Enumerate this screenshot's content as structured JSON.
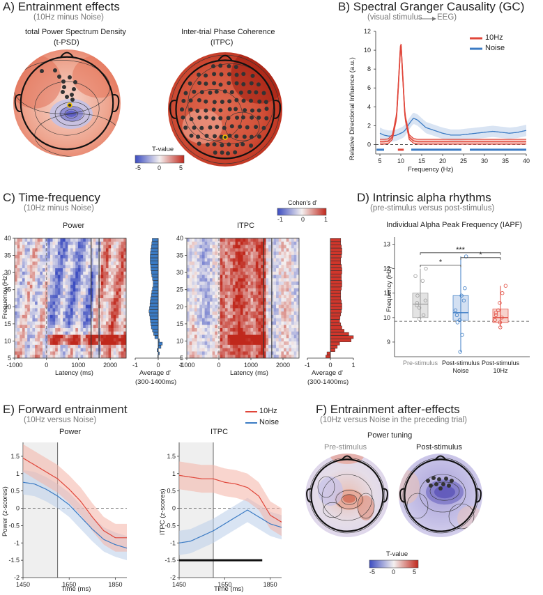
{
  "panels": {
    "A": {
      "title": "A) Entrainment effects",
      "subtitle": "(10Hz minus Noise)",
      "map1_title": "total Power Spectrum Density",
      "map1_sub": "(t-PSD)",
      "map2_title": "Inter-trial Phase Coherence",
      "map2_sub": "(ITPC)",
      "cbar_title": "T-value",
      "cbar_ticks": [
        "-5",
        "0",
        "5"
      ]
    },
    "B": {
      "title": "B) Spectral Granger Causality (GC)",
      "subtitle": "(visual stimulus",
      "subtitle_end": "EEG)",
      "ylabel": "Relative Directional Influence (a.u.)",
      "xlabel": "Frequency (Hz)"
    },
    "C": {
      "title": "C) Time-frequency",
      "subtitle": "(10Hz minus Noise)",
      "power_title": "Power",
      "itpc_title": "ITPC",
      "ylabel": "Frequency (Hz)",
      "xlabel": "Latency (ms)",
      "bar_xlabel": "Average d'",
      "bar_xsub": "(300-1400ms)",
      "cbar_title": "Cohen's d'",
      "cbar_ticks": [
        "-1",
        "0",
        "1"
      ]
    },
    "D": {
      "title": "D) Intrinsic alpha rhythms",
      "subtitle": "(pre-stimulus versus post-stimulus)",
      "plot_title": "Individual Alpha Peak Frequency (IAPF)",
      "ylabel": "Frequency (Hz)",
      "cats": [
        "Pre-stimulus",
        "Post-stimulus\nNoise",
        "Post-stimulus\n10Hz"
      ],
      "sig": [
        "*",
        "***",
        "*"
      ]
    },
    "E": {
      "title": "E) Forward entrainment",
      "subtitle": "(10Hz versus Noise)",
      "power_title": "Power",
      "itpc_title": "ITPC",
      "ylabel_power": "Power (z-scores)",
      "ylabel_itpc": "ITPC (z-scores)",
      "xlabel": "Time (ms)"
    },
    "F": {
      "title": "F) Entrainment after-effects",
      "subtitle": "(10Hz versus Noise in the preceding trial)",
      "tuning_title": "Power tuning",
      "pre_title": "Pre-stimulus",
      "post_title": "Post-stimulus",
      "cbar_title": "T-value",
      "cbar_ticks": [
        "-5",
        "0",
        "5"
      ]
    }
  },
  "legend": {
    "s1": "10Hz",
    "s2": "Noise"
  },
  "colors": {
    "red": "#e0463a",
    "blue": "#3b7bc4",
    "redfill": "#f4b3a6",
    "bluefill": "#b9cdea"
  },
  "chart_data": [
    {
      "type": "line",
      "title": "Spectral Granger Causality (GC)",
      "xlabel": "Frequency (Hz)",
      "ylabel": "Relative Directional Influence (a.u.)",
      "x": [
        5,
        6,
        7,
        8,
        9,
        9.5,
        10,
        10.5,
        11,
        12,
        13,
        14,
        15,
        16,
        18,
        20,
        22,
        24,
        26,
        28,
        30,
        32,
        34,
        36,
        38,
        40
      ],
      "series": [
        {
          "name": "10Hz",
          "values": [
            0.3,
            0.3,
            0.35,
            0.8,
            3.0,
            7.0,
            11.0,
            7.0,
            3.0,
            0.8,
            0.4,
            0.3,
            0.3,
            0.3,
            0.3,
            0.3,
            0.3,
            0.3,
            0.3,
            0.3,
            0.3,
            0.3,
            0.3,
            0.3,
            0.3,
            0.3
          ]
        },
        {
          "name": "Noise",
          "values": [
            1.2,
            1.0,
            0.9,
            0.9,
            1.0,
            1.1,
            1.2,
            1.3,
            1.5,
            2.2,
            2.8,
            2.6,
            2.2,
            1.8,
            1.5,
            1.2,
            1.0,
            1.0,
            1.1,
            1.2,
            1.3,
            1.4,
            1.3,
            1.2,
            1.3,
            1.5
          ]
        }
      ],
      "xticks": [
        5,
        10,
        15,
        20,
        25,
        30,
        35,
        40
      ],
      "yticks": [
        0,
        2,
        4,
        6,
        8,
        10,
        12
      ],
      "ylim": [
        -1,
        12
      ],
      "xlim": [
        4,
        40
      ]
    },
    {
      "type": "heatmap",
      "title": "Power",
      "xlabel": "Latency (ms)",
      "ylabel": "Frequency (Hz)",
      "xticks": [
        -1000,
        0,
        1000,
        2000
      ],
      "yticks": [
        5,
        10,
        15,
        20,
        25,
        30,
        35,
        40
      ]
    },
    {
      "type": "heatmap",
      "title": "ITPC",
      "xlabel": "Latency (ms)",
      "ylabel": "Frequency (Hz)",
      "xticks": [
        -1000,
        0,
        1000,
        2000
      ],
      "yticks": [
        5,
        10,
        15,
        20,
        25,
        30,
        35,
        40
      ]
    },
    {
      "type": "bar",
      "title": "Power average d'",
      "xlabel": "Average d' (300-1400ms)",
      "xticks": [
        -1,
        0,
        1
      ],
      "values": [
        -0.02,
        0.05,
        -0.05,
        0.12,
        0.18,
        0.05,
        -0.15,
        -0.2,
        -0.25,
        -0.3,
        -0.32,
        -0.34,
        -0.36,
        -0.38,
        -0.4,
        -0.38,
        -0.36,
        -0.35,
        -0.33,
        -0.3,
        -0.28,
        -0.25,
        -0.22,
        -0.22,
        -0.25,
        -0.28,
        -0.3,
        -0.32,
        -0.33,
        -0.35,
        -0.35,
        -0.35,
        -0.34,
        -0.32,
        -0.3,
        -0.28,
        -0.26
      ]
    },
    {
      "type": "bar",
      "title": "ITPC average d'",
      "xlabel": "Average d' (300-1400ms)",
      "xticks": [
        -1,
        0,
        1
      ],
      "values": [
        -0.2,
        -0.15,
        0.2,
        0.3,
        0.4,
        0.9,
        1.0,
        0.8,
        0.6,
        0.5,
        0.45,
        0.4,
        0.42,
        0.45,
        0.48,
        0.5,
        0.5,
        0.48,
        0.45,
        0.45,
        0.45,
        0.48,
        0.5,
        0.5,
        0.48,
        0.48,
        0.5,
        0.5,
        0.48,
        0.45,
        0.45,
        0.48,
        0.5,
        0.5,
        0.48,
        0.45,
        0.45
      ]
    },
    {
      "type": "scatter",
      "title": "Individual Alpha Peak Frequency (IAPF)",
      "ylabel": "Frequency (Hz)",
      "yticks": [
        9,
        10,
        11,
        12,
        13
      ],
      "ylim": [
        8.4,
        13.3
      ],
      "categories": [
        "Pre-stimulus",
        "Post-stimulus Noise",
        "Post-stimulus 10Hz"
      ],
      "median": [
        10.55,
        10.2,
        10.0
      ],
      "q1": [
        10.0,
        9.9,
        9.8
      ],
      "q3": [
        11.0,
        10.9,
        10.35
      ],
      "hline": 9.85,
      "points": [
        [
          9.95,
          10.1,
          10.4,
          10.5,
          10.6,
          10.7,
          10.9,
          11.5,
          11.7,
          12.0
        ],
        [
          8.6,
          9.3,
          9.8,
          9.9,
          10.1,
          10.3,
          10.7,
          10.9,
          11.2,
          12.5
        ],
        [
          9.6,
          9.8,
          9.9,
          10.0,
          10.1,
          10.2,
          10.3,
          10.6,
          11.0,
          11.3
        ]
      ]
    },
    {
      "type": "line",
      "title": "Power",
      "xlabel": "Time (ms)",
      "ylabel": "Power (z-scores)",
      "xticks": [
        1450,
        1650,
        1850
      ],
      "yticks": [
        -2,
        -1.5,
        -1,
        -0.5,
        0,
        0.5,
        1,
        1.5
      ],
      "ylim": [
        -2,
        1.9
      ],
      "x": [
        1450,
        1500,
        1550,
        1600,
        1650,
        1700,
        1750,
        1800,
        1850,
        1900
      ],
      "series": [
        {
          "name": "10Hz",
          "values": [
            1.45,
            1.25,
            1.05,
            0.85,
            0.55,
            0.2,
            -0.25,
            -0.65,
            -0.85,
            -0.85
          ]
        },
        {
          "name": "Noise",
          "values": [
            0.75,
            0.7,
            0.55,
            0.35,
            0.1,
            -0.25,
            -0.6,
            -0.9,
            -1.05,
            -1.15
          ]
        }
      ]
    },
    {
      "type": "line",
      "title": "ITPC",
      "xlabel": "Time (ms)",
      "ylabel": "ITPC (z-scores)",
      "xticks": [
        1450,
        1650,
        1850
      ],
      "yticks": [
        -2,
        -1.5,
        -1,
        -0.5,
        0,
        0.5,
        1,
        1.5
      ],
      "ylim": [
        -2,
        1.9
      ],
      "x": [
        1450,
        1500,
        1550,
        1600,
        1650,
        1700,
        1750,
        1800,
        1850,
        1900
      ],
      "series": [
        {
          "name": "10Hz",
          "values": [
            0.95,
            0.9,
            0.85,
            0.85,
            0.75,
            0.7,
            0.6,
            0.35,
            -0.2,
            -0.4
          ]
        },
        {
          "name": "Noise",
          "values": [
            -1.0,
            -0.95,
            -0.8,
            -0.65,
            -0.45,
            -0.25,
            -0.05,
            -0.25,
            -0.45,
            -0.55
          ]
        }
      ],
      "sig_bar": [
        1450,
        1815
      ]
    }
  ]
}
